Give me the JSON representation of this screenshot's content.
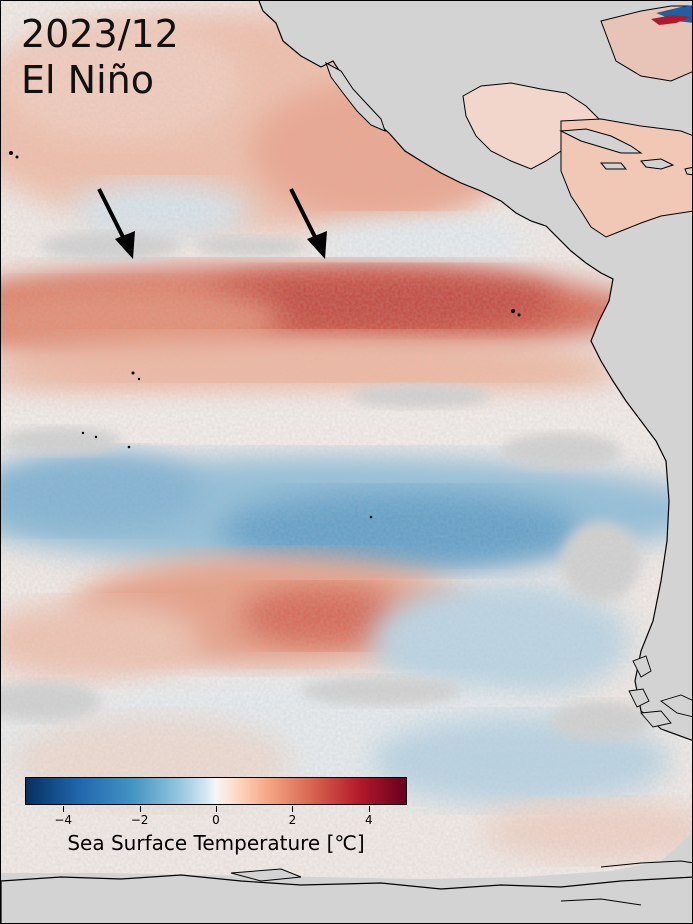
{
  "title": {
    "date": "2023/12",
    "event": "El Niño"
  },
  "colorbar": {
    "label": "Sea Surface Temperature [℃]",
    "vmin": -5,
    "vmax": 5,
    "ticks": [
      {
        "value": -4,
        "label": "−4"
      },
      {
        "value": -2,
        "label": "−2"
      },
      {
        "value": 0,
        "label": "0"
      },
      {
        "value": 2,
        "label": "2"
      },
      {
        "value": 4,
        "label": "4"
      }
    ],
    "colormap": "RdBu_r"
  },
  "colors": {
    "land": "#d3d3d3",
    "coastline": "#000000",
    "warm_anomaly": "#d6604d",
    "cool_anomaly": "#4393c3",
    "neutral": "#f7f7f7",
    "arrow": "#000000"
  },
  "map": {
    "region": "Eastern Pacific Ocean",
    "annotations": [
      {
        "type": "arrow",
        "points_to": "equatorial warm tongue"
      },
      {
        "type": "arrow",
        "points_to": "equatorial warm tongue"
      }
    ]
  }
}
